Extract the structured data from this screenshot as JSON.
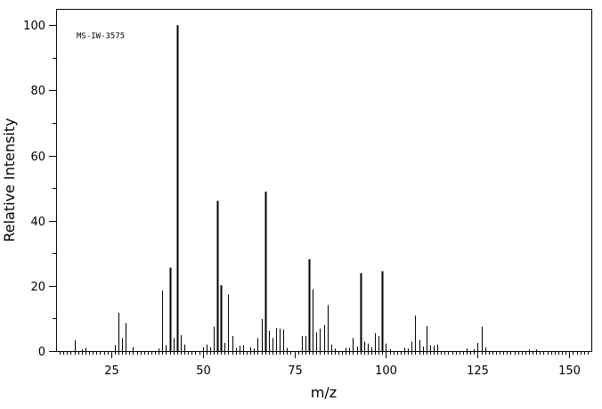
{
  "chart_data": {
    "type": "bar",
    "title": "",
    "annotation": "MS-IW-3575",
    "xlabel": "m/z",
    "ylabel": "Relative Intensity",
    "xlim": [
      10,
      156
    ],
    "ylim": [
      0,
      105
    ],
    "x_major_ticks": [
      25,
      50,
      75,
      100,
      125,
      150
    ],
    "x_minor_step": 1,
    "y_major_ticks": [
      0,
      20,
      40,
      60,
      80,
      100
    ],
    "y_minor_step": 10,
    "grid": false,
    "legend": "none",
    "bar_color": "#000000",
    "peaks": [
      [
        15,
        3.3
      ],
      [
        17,
        0.5
      ],
      [
        18,
        1.0
      ],
      [
        26,
        1.8
      ],
      [
        27,
        11.8
      ],
      [
        28,
        4.0
      ],
      [
        29,
        8.6
      ],
      [
        31,
        1.2
      ],
      [
        38,
        0.8
      ],
      [
        39,
        18.6
      ],
      [
        40,
        1.8
      ],
      [
        41,
        25.6
      ],
      [
        42,
        4.0
      ],
      [
        43,
        100.0
      ],
      [
        44,
        4.9
      ],
      [
        45,
        2.0
      ],
      [
        50,
        1.2
      ],
      [
        51,
        2.0
      ],
      [
        52,
        1.2
      ],
      [
        53,
        7.5
      ],
      [
        54,
        46.1
      ],
      [
        55,
        20.2
      ],
      [
        56,
        2.5
      ],
      [
        57,
        17.4
      ],
      [
        58,
        4.6
      ],
      [
        59,
        1.0
      ],
      [
        60,
        1.6
      ],
      [
        61,
        1.8
      ],
      [
        63,
        1.2
      ],
      [
        64,
        0.8
      ],
      [
        65,
        4.0
      ],
      [
        66,
        9.8
      ],
      [
        67,
        48.9
      ],
      [
        68,
        6.3
      ],
      [
        69,
        4.0
      ],
      [
        70,
        7.1
      ],
      [
        71,
        6.9
      ],
      [
        72,
        6.6
      ],
      [
        73,
        1.0
      ],
      [
        77,
        4.6
      ],
      [
        78,
        4.6
      ],
      [
        79,
        28.2
      ],
      [
        80,
        19.0
      ],
      [
        81,
        5.7
      ],
      [
        82,
        6.9
      ],
      [
        83,
        8.0
      ],
      [
        84,
        14.1
      ],
      [
        85,
        2.0
      ],
      [
        86,
        0.8
      ],
      [
        89,
        1.0
      ],
      [
        90,
        1.0
      ],
      [
        91,
        4.0
      ],
      [
        92,
        1.4
      ],
      [
        93,
        23.9
      ],
      [
        94,
        2.9
      ],
      [
        95,
        2.3
      ],
      [
        96,
        1.2
      ],
      [
        97,
        5.5
      ],
      [
        98,
        4.6
      ],
      [
        99,
        24.5
      ],
      [
        100,
        2.3
      ],
      [
        101,
        0.6
      ],
      [
        105,
        1.0
      ],
      [
        106,
        0.8
      ],
      [
        107,
        2.9
      ],
      [
        108,
        10.9
      ],
      [
        109,
        3.4
      ],
      [
        110,
        1.4
      ],
      [
        111,
        7.7
      ],
      [
        112,
        1.8
      ],
      [
        113,
        1.6
      ],
      [
        114,
        2.0
      ],
      [
        122,
        0.8
      ],
      [
        124,
        0.6
      ],
      [
        125,
        2.5
      ],
      [
        126,
        7.5
      ],
      [
        127,
        1.2
      ],
      [
        139,
        0.5
      ],
      [
        141,
        0.5
      ]
    ]
  }
}
